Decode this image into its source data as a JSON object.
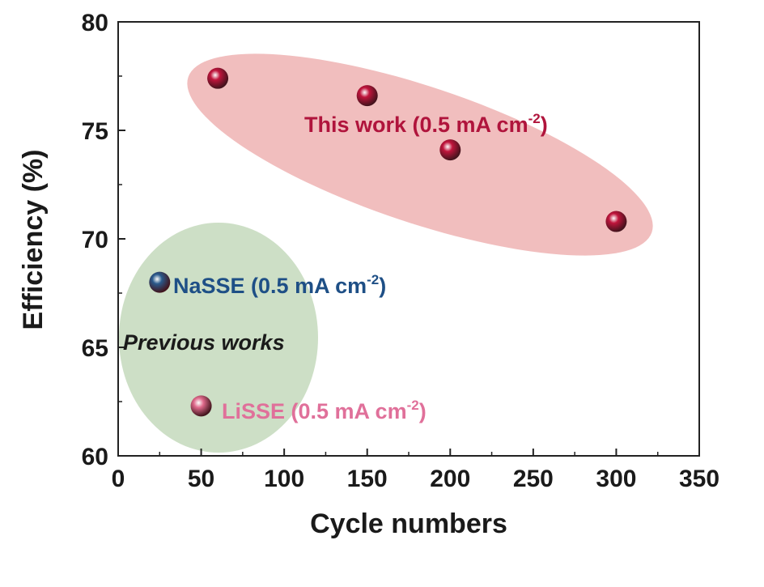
{
  "chart_data": {
    "type": "scatter",
    "xlabel": "Cycle numbers",
    "ylabel": "Efficiency (%)",
    "xlim": [
      0,
      350
    ],
    "ylim": [
      60,
      80
    ],
    "xticks": [
      0,
      50,
      100,
      150,
      200,
      250,
      300,
      350
    ],
    "yticks": [
      60,
      65,
      70,
      75,
      80
    ],
    "grid": false,
    "series": [
      {
        "name": "This work (0.5 mA cm-2)",
        "color": "#c0143c",
        "points": [
          {
            "x": 60,
            "y": 77.4
          },
          {
            "x": 150,
            "y": 76.6
          },
          {
            "x": 200,
            "y": 74.1
          },
          {
            "x": 300,
            "y": 70.8
          }
        ]
      },
      {
        "name": "NaSSE (0.5 mA cm-2)",
        "color": "#2a5a8c",
        "points": [
          {
            "x": 25,
            "y": 68.0
          }
        ]
      },
      {
        "name": "LiSSE (0.5 mA cm-2)",
        "color": "#e06a8c",
        "points": [
          {
            "x": 50,
            "y": 62.3
          }
        ]
      }
    ],
    "annotations": {
      "this_work": {
        "text": "This work (0.5 mA cm",
        "sup": "-2",
        "close": ")",
        "color": "#b0143c"
      },
      "nasse": {
        "text": "NaSSE (0.5 mA cm",
        "sup": "-2",
        "close": ")",
        "color": "#1e4f86"
      },
      "lisse": {
        "text": "LiSSE (0.5 mA cm",
        "sup": "-2",
        "close": ")",
        "color": "#e0709a"
      },
      "previous": {
        "text": "Previous works",
        "color": "#3f8a2a"
      }
    },
    "regions": {
      "this_work_fill": "#eeb3b3",
      "previous_fill": "#c8dcc0"
    }
  }
}
